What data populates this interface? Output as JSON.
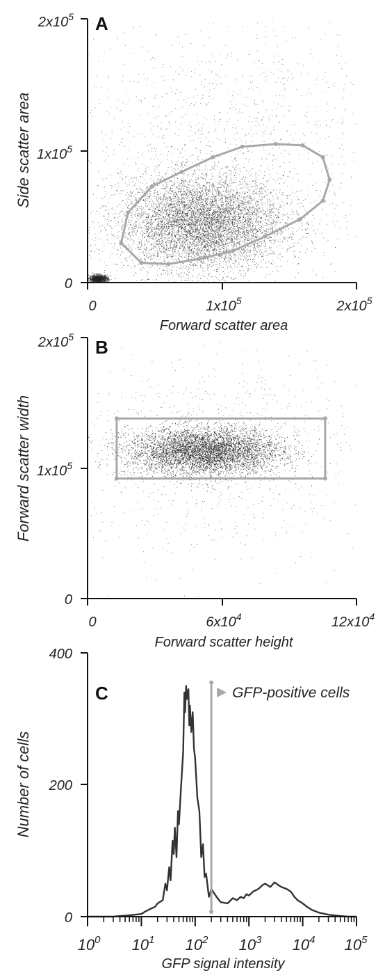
{
  "colors": {
    "axis": "#111111",
    "gate": "#a8a8a8",
    "dots": "#222222",
    "hist": "#333333"
  },
  "panels": [
    {
      "letter": "A",
      "xlabel": "Forward scatter area",
      "ylabel": "Side scatter area",
      "xticks": [
        {
          "value": 0,
          "label": "0"
        },
        {
          "value": 100000,
          "base": "1x10",
          "exp": "5"
        },
        {
          "value": 200000,
          "base": "2x10",
          "exp": "5"
        }
      ],
      "yticks": [
        {
          "value": 0,
          "label": "0"
        },
        {
          "value": 100000,
          "base": "1x10",
          "exp": "5"
        },
        {
          "value": 200000,
          "base": "2x10",
          "exp": "5"
        }
      ]
    },
    {
      "letter": "B",
      "xlabel": "Forward scatter height",
      "ylabel": "Forward scatter width",
      "xticks": [
        {
          "value": 0,
          "label": "0"
        },
        {
          "value": 60000,
          "base": "6x10",
          "exp": "4"
        },
        {
          "value": 120000,
          "base": "12x10",
          "exp": "4"
        }
      ],
      "yticks": [
        {
          "value": 0,
          "label": "0"
        },
        {
          "value": 100000,
          "base": "1x10",
          "exp": "5"
        },
        {
          "value": 200000,
          "base": "2x10",
          "exp": "5"
        }
      ]
    },
    {
      "letter": "C",
      "xlabel": "GFP signal intensity",
      "ylabel": "Number of cells",
      "annotation": "GFP-positive cells",
      "xticks": [
        {
          "value": 0,
          "base": "10",
          "exp": "0"
        },
        {
          "value": 1,
          "base": "10",
          "exp": "1"
        },
        {
          "value": 2,
          "base": "10",
          "exp": "2"
        },
        {
          "value": 3,
          "base": "10",
          "exp": "3"
        },
        {
          "value": 4,
          "base": "10",
          "exp": "4"
        },
        {
          "value": 5,
          "base": "10",
          "exp": "5"
        }
      ],
      "yticks": [
        {
          "value": 0,
          "label": "0"
        },
        {
          "value": 200,
          "label": "200"
        },
        {
          "value": 400,
          "label": "400"
        }
      ]
    }
  ],
  "chart_data": [
    {
      "type": "scatter",
      "panel": "A",
      "xlabel": "Forward scatter area",
      "ylabel": "Side scatter area",
      "xlim": [
        0,
        200000
      ],
      "ylim": [
        0,
        200000
      ],
      "populations": [
        {
          "center": [
            85000,
            45000
          ],
          "spread": [
            30000,
            18000
          ],
          "count": 9000
        },
        {
          "center": [
            8000,
            3000
          ],
          "spread": [
            3500,
            1500
          ],
          "count": 1400
        },
        {
          "center": [
            100000,
            100000
          ],
          "spread": [
            65000,
            50000
          ],
          "count": 1500
        }
      ],
      "gate_polygon": [
        [
          25000,
          30000
        ],
        [
          30000,
          53000
        ],
        [
          48000,
          73000
        ],
        [
          70000,
          84000
        ],
        [
          93000,
          95000
        ],
        [
          115000,
          103000
        ],
        [
          140000,
          105000
        ],
        [
          160000,
          104000
        ],
        [
          175000,
          95000
        ],
        [
          180000,
          78000
        ],
        [
          175000,
          62000
        ],
        [
          158000,
          48000
        ],
        [
          132000,
          35000
        ],
        [
          108000,
          24000
        ],
        [
          83000,
          18000
        ],
        [
          60000,
          14000
        ],
        [
          40000,
          15000
        ],
        [
          25000,
          30000
        ]
      ]
    },
    {
      "type": "scatter",
      "panel": "B",
      "xlabel": "Forward scatter height",
      "ylabel": "Forward scatter width",
      "xlim": [
        0,
        120000
      ],
      "ylim": [
        0,
        200000
      ],
      "populations": [
        {
          "center": [
            52000,
            113000
          ],
          "spread": [
            17000,
            9000
          ],
          "count": 9000
        },
        {
          "center": [
            55000,
            112000
          ],
          "spread": [
            35000,
            40000
          ],
          "count": 900
        }
      ],
      "gate_rect": {
        "x": [
          13000,
          106000
        ],
        "y": [
          92000,
          138000
        ]
      }
    },
    {
      "type": "line",
      "panel": "C",
      "xlabel": "GFP signal intensity",
      "ylabel": "Number of cells",
      "xscale": "log",
      "xlim": [
        1,
        100000
      ],
      "ylim": [
        0,
        400
      ],
      "gate_x": 200,
      "series": [
        {
          "x": [
            1,
            3,
            6,
            10,
            12,
            15,
            18,
            20,
            25,
            28,
            30,
            33,
            35,
            38,
            40,
            42,
            45,
            48,
            50,
            55,
            60,
            63,
            65,
            68,
            70,
            75,
            78,
            80,
            85,
            90,
            95,
            100,
            110,
            120,
            130,
            140,
            150,
            160,
            180,
            200,
            250,
            300,
            400,
            500,
            600,
            700,
            800,
            900,
            1000,
            1200,
            1500,
            1800,
            2000,
            2500,
            3000,
            3500,
            4000,
            5000,
            6000,
            7000,
            8000,
            10000,
            12000,
            15000,
            20000,
            30000,
            50000,
            70000,
            100000
          ],
          "y": [
            0,
            0,
            2,
            4,
            8,
            12,
            15,
            20,
            25,
            50,
            40,
            75,
            55,
            115,
            95,
            135,
            90,
            160,
            140,
            200,
            250,
            340,
            310,
            350,
            330,
            345,
            290,
            320,
            280,
            310,
            255,
            240,
            180,
            160,
            90,
            110,
            60,
            65,
            30,
            42,
            30,
            22,
            20,
            28,
            25,
            30,
            28,
            34,
            32,
            38,
            42,
            48,
            50,
            45,
            52,
            48,
            45,
            42,
            38,
            30,
            25,
            20,
            15,
            10,
            6,
            3,
            1,
            0,
            0
          ]
        }
      ]
    }
  ]
}
